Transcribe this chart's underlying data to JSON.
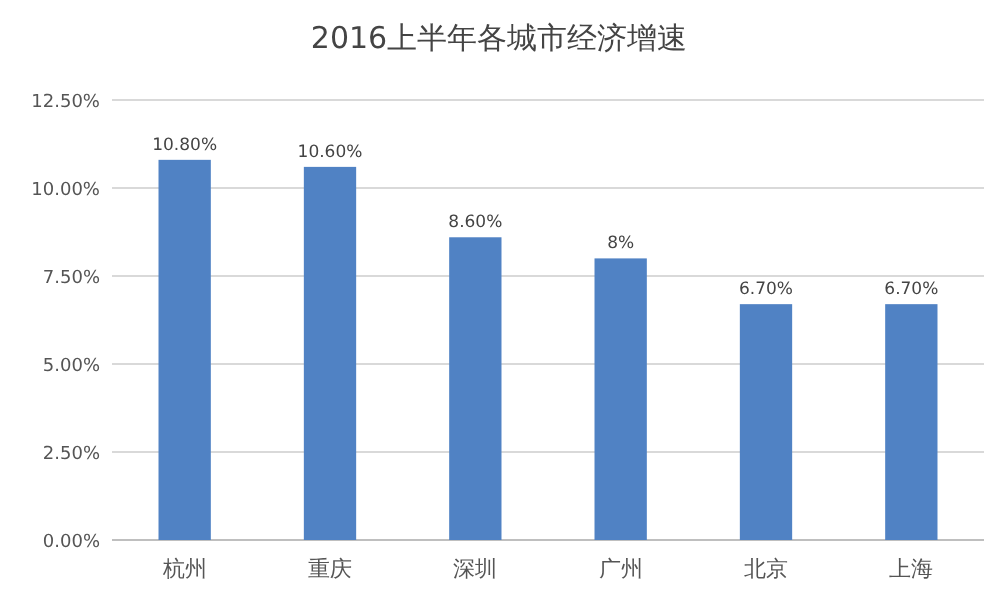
{
  "chart_data": {
    "type": "bar",
    "title": "2016上半年各城市经济增速",
    "categories": [
      "杭州",
      "重庆",
      "深圳",
      "广州",
      "北京",
      "上海"
    ],
    "values": [
      10.8,
      10.6,
      8.6,
      8,
      6.7,
      6.7
    ],
    "value_labels": [
      "10.80%",
      "10.60%",
      "8.60%",
      "8%",
      "6.70%",
      "6.70%"
    ],
    "color": "#5082c4",
    "ylim": [
      0,
      12.5
    ],
    "yticks": [
      {
        "value": 0,
        "label": "0.00%"
      },
      {
        "value": 2.5,
        "label": "2.50%"
      },
      {
        "value": 5,
        "label": "5.00%"
      },
      {
        "value": 7.5,
        "label": "7.50%"
      },
      {
        "value": 10,
        "label": "10.00%"
      },
      {
        "value": 12.5,
        "label": "12.50%"
      }
    ],
    "grid": "y"
  }
}
